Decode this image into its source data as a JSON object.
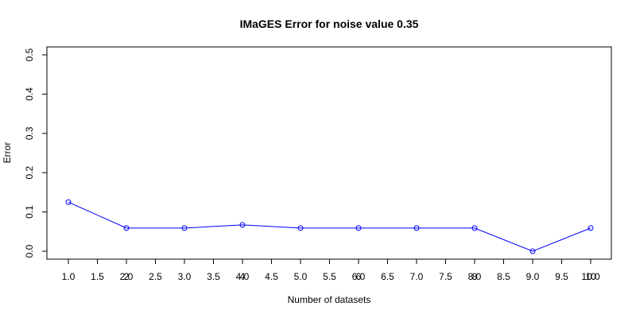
{
  "chart_data": {
    "type": "line",
    "title": "IMaGES Error for noise value 0.35",
    "xlabel": "Number of datasets",
    "ylabel": "Error",
    "x": [
      1,
      2,
      3,
      4,
      5,
      6,
      7,
      8,
      9,
      10
    ],
    "series": [
      {
        "color": "#0000ff",
        "marker": "circle",
        "values": [
          0.125,
          0.059,
          0.059,
          0.067,
          0.059,
          0.059,
          0.059,
          0.059,
          0.0,
          0.059
        ]
      }
    ],
    "xlim": [
      1,
      10
    ],
    "ylim": [
      0,
      0.5
    ],
    "x_ticks": [
      1.0,
      1.5,
      2.0,
      2.5,
      3.0,
      3.5,
      4.0,
      4.5,
      5.0,
      5.5,
      6.0,
      6.5,
      7.0,
      7.5,
      8.0,
      8.5,
      9.0,
      9.5,
      10.0
    ],
    "x_tick_labels": [
      "1.0",
      "1.5",
      "2.0",
      "2.5",
      "3.0",
      "3.5",
      "4.0",
      "4.5",
      "5.0",
      "5.5",
      "6.0",
      "6.5",
      "7.0",
      "7.5",
      "8.0",
      "8.5",
      "9.0",
      "9.5",
      "10.0"
    ],
    "x_overlay_ticks": [
      2,
      4,
      6,
      8,
      10
    ],
    "x_overlay_labels": [
      "2",
      "4",
      "6",
      "8",
      "10"
    ],
    "y_ticks": [
      0.0,
      0.1,
      0.2,
      0.3,
      0.4,
      0.5
    ],
    "y_tick_labels": [
      "0.0",
      "0.1",
      "0.2",
      "0.3",
      "0.4",
      "0.5"
    ],
    "grid": false,
    "legend": "none"
  }
}
